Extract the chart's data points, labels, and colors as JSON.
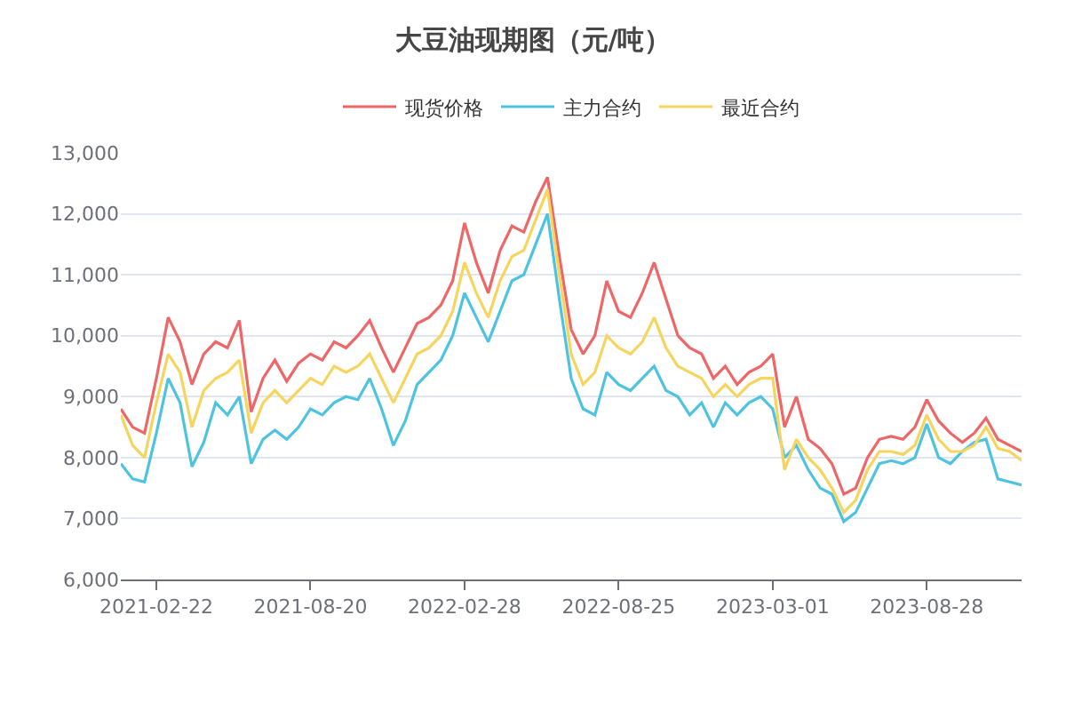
{
  "chart_data": {
    "type": "line",
    "title": "大豆油现期图（元/吨）",
    "categories": [
      null,
      null,
      null,
      "2021-02-22",
      null,
      null,
      null,
      null,
      null,
      null,
      null,
      null,
      null,
      null,
      null,
      null,
      "2021-08-20",
      null,
      null,
      null,
      null,
      null,
      null,
      null,
      null,
      null,
      null,
      null,
      null,
      "2022-02-28",
      null,
      null,
      null,
      null,
      null,
      null,
      null,
      null,
      null,
      null,
      null,
      null,
      "2022-08-25",
      null,
      null,
      null,
      null,
      null,
      null,
      null,
      null,
      null,
      null,
      null,
      null,
      "2023-03-01",
      null,
      null,
      null,
      null,
      null,
      null,
      null,
      null,
      null,
      null,
      null,
      null,
      "2023-08-28",
      null,
      null,
      null,
      null,
      null,
      null,
      null,
      null
    ],
    "series": [
      {
        "name": "现货价格",
        "color": "#ee6666",
        "values": [
          8800,
          8500,
          8400,
          9300,
          10300,
          9900,
          9200,
          9700,
          9900,
          9800,
          10250,
          8750,
          9300,
          9600,
          9250,
          9550,
          9700,
          9600,
          9900,
          9800,
          10000,
          10250,
          9800,
          9400,
          9800,
          10200,
          10300,
          10500,
          10900,
          11850,
          11200,
          10700,
          11400,
          11800,
          11700,
          12200,
          12600,
          11300,
          10100,
          9700,
          10000,
          10900,
          10400,
          10300,
          10700,
          11200,
          10600,
          10000,
          9800,
          9700,
          9300,
          9500,
          9200,
          9400,
          9500,
          9700,
          8500,
          9000,
          8300,
          8150,
          7900,
          7400,
          7500,
          8000,
          8300,
          8350,
          8300,
          8500,
          8950,
          8600,
          8400,
          8250,
          8400,
          8650,
          8300,
          8200,
          8100
        ]
      },
      {
        "name": "主力合约",
        "color": "#4ec3e0",
        "values": [
          7900,
          7650,
          7600,
          8400,
          9300,
          8900,
          7850,
          8250,
          8900,
          8700,
          9000,
          7900,
          8300,
          8450,
          8300,
          8500,
          8800,
          8700,
          8900,
          9000,
          8950,
          9300,
          8800,
          8200,
          8600,
          9200,
          9400,
          9600,
          10000,
          10700,
          10300,
          9900,
          10400,
          10900,
          11000,
          11500,
          12000,
          10600,
          9300,
          8800,
          8700,
          9400,
          9200,
          9100,
          9300,
          9500,
          9100,
          9000,
          8700,
          8900,
          8500,
          8900,
          8700,
          8900,
          9000,
          8800,
          8000,
          8200,
          7800,
          7500,
          7400,
          6950,
          7100,
          7500,
          7900,
          7950,
          7900,
          8000,
          8550,
          8000,
          7900,
          8100,
          8250,
          8300,
          7650,
          7600,
          7550
        ]
      },
      {
        "name": "最近合约",
        "color": "#f5d55f",
        "values": [
          8700,
          8200,
          8000,
          8900,
          9700,
          9400,
          8500,
          9100,
          9300,
          9400,
          9600,
          8400,
          8900,
          9100,
          8900,
          9100,
          9300,
          9200,
          9500,
          9400,
          9500,
          9700,
          9300,
          8900,
          9300,
          9700,
          9800,
          10000,
          10400,
          11200,
          10700,
          10300,
          10900,
          11300,
          11400,
          11900,
          12400,
          11000,
          9700,
          9200,
          9400,
          10000,
          9800,
          9700,
          9900,
          10300,
          9800,
          9500,
          9400,
          9300,
          9000,
          9200,
          9000,
          9200,
          9300,
          9300,
          7800,
          8300,
          8000,
          7800,
          7500,
          7100,
          7300,
          7800,
          8100,
          8100,
          8050,
          8200,
          8700,
          8300,
          8100,
          8100,
          8200,
          8500,
          8150,
          8100,
          7950
        ]
      }
    ],
    "ylim": [
      6000,
      13000
    ],
    "yticks": [
      {
        "value": 6000,
        "label": "6,000"
      },
      {
        "value": 7000,
        "label": "7,000"
      },
      {
        "value": 8000,
        "label": "8,000"
      },
      {
        "value": 9000,
        "label": "9,000"
      },
      {
        "value": 10000,
        "label": "10,000"
      },
      {
        "value": 11000,
        "label": "11,000"
      },
      {
        "value": 12000,
        "label": "12,000"
      },
      {
        "value": 13000,
        "label": "13,000"
      }
    ],
    "grid": "y",
    "legend": "top"
  }
}
